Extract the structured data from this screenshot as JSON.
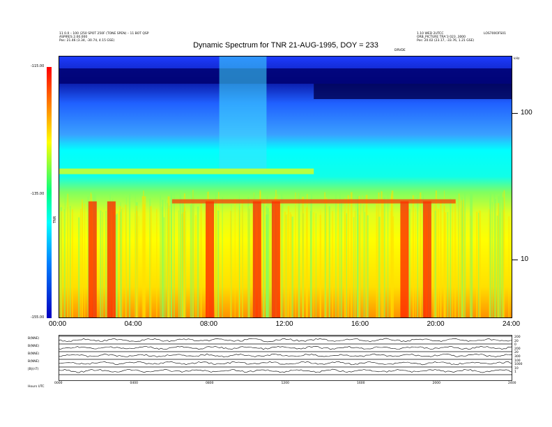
{
  "title": "Dynamic Spectrum for TNR 21-AUG-1995, DOY = 233",
  "header_left": [
    "11 0.0 – 100 (250 SPOT 250F (TONE SPEN) – 11 BOT QSP",
    "ASPIRES 2.00.000",
    "Pos:   21.46 (3.34, -30.74, 4.15 GSE)"
  ],
  "header_right": [
    "1.10 WED 2UTCC",
    "ORB_PICTURE TRA’3 023 ,3000",
    "Pos:   20.02 (23.17, -33.76, 1.21 GSE)"
  ],
  "right_corner": "LOS700OFS01",
  "center_tag": "DRVDE",
  "colorbar": {
    "ticks": [
      "-115.00",
      "-135.00",
      "-155.00"
    ],
    "label": "TNR"
  },
  "chart_data": {
    "type": "heatmap",
    "title": "Dynamic Spectrum for TNR 21-AUG-1995, DOY = 233",
    "x_tick_labels": [
      "00:00",
      "04:00",
      "08:00",
      "12:00",
      "16:00",
      "20:00",
      "24:00"
    ],
    "x_range_hours": [
      0,
      24
    ],
    "y_scale": "log",
    "y_tick_labels": [
      "100",
      "10"
    ],
    "y_unit": "kHz",
    "y_range_khz": [
      4,
      245
    ],
    "color_range_dB": [
      -155,
      -115
    ],
    "features": {
      "plasma_line_khz": 40,
      "plasma_line_upper_hours": [
        0,
        13.5
      ],
      "red_emission_khz": 25,
      "red_emission_hours": [
        6,
        21
      ],
      "intense_bursts_hours": [
        1.8,
        2.8,
        8.0,
        10.5,
        11.5,
        18.3,
        19.5
      ],
      "vertical_burst_hours": [
        8.5,
        11.0
      ]
    }
  },
  "panel_labels": [
    "B(NNE)",
    "B(NNE)",
    "B(NNE)",
    "B(NNE)",
    "|B|(nT)"
  ],
  "panel_right_labels": [
    "200",
    "20",
    "0",
    "200",
    "20",
    "300",
    "100",
    "1000",
    "10",
    "1"
  ],
  "bottom_axis_ticks": [
    "0000",
    "0400",
    "0800",
    "1200",
    "1600",
    "2000",
    "2400"
  ],
  "bottom_axis_label": "Hours  UTC"
}
